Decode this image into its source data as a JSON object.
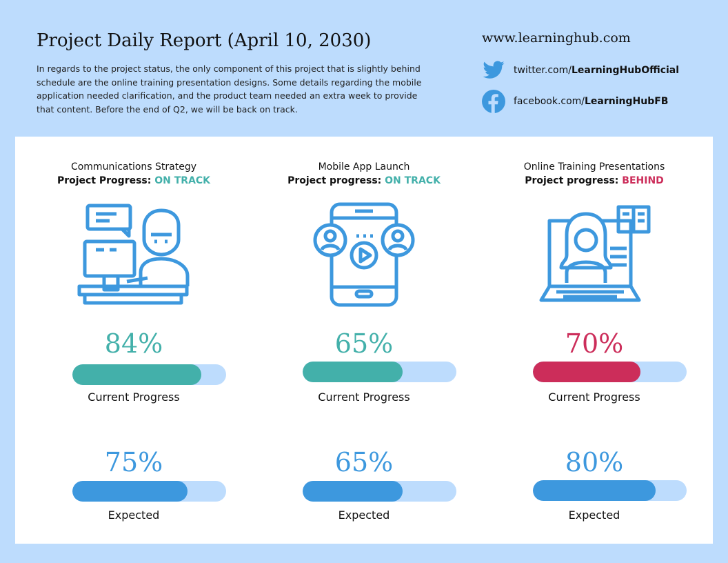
{
  "header": {
    "title": "Project Daily Report (April 10, 2030)",
    "description": "In regards to the project status, the only component of this project that is slightly behind schedule are the online training presentation designs. Some details regarding the mobile application needed clarification, and the product team needed an extra week to provide that content. Before the end of Q2, we will be back on track.",
    "website": "www.learninghub.com",
    "twitter_prefix": "twitter.com/",
    "twitter_handle": "LearningHubOfficial",
    "facebook_prefix": "facebook.com/",
    "facebook_handle": "LearningHubFB"
  },
  "colors": {
    "background": "#bddcfd",
    "on_track": "#43b0aa",
    "behind": "#cc2d5a",
    "expected": "#3d98de",
    "track": "#bddcfd"
  },
  "projects": [
    {
      "name": "Communications Strategy",
      "progress_label": "Project Progress",
      "status": "ON TRACK",
      "status_color": "#43b0aa",
      "icon": "person-at-computer-icon",
      "current": "84%",
      "current_value": 84,
      "current_label": "Current Progress",
      "expected": "75%",
      "expected_value": 75,
      "expected_label": "Expected"
    },
    {
      "name": "Mobile App Launch",
      "progress_label": "Project progress",
      "status": "ON TRACK",
      "status_color": "#43b0aa",
      "icon": "mobile-video-call-icon",
      "current": "65%",
      "current_value": 65,
      "current_label": "Current Progress",
      "expected": "65%",
      "expected_value": 65,
      "expected_label": "Expected"
    },
    {
      "name": "Online Training Presentations",
      "progress_label": "Project progress",
      "status": "BEHIND",
      "status_color": "#cc2d5a",
      "icon": "online-teacher-icon",
      "current": "70%",
      "current_value": 70,
      "current_label": "Current Progress",
      "expected": "80%",
      "expected_value": 80,
      "expected_label": "Expected"
    }
  ]
}
